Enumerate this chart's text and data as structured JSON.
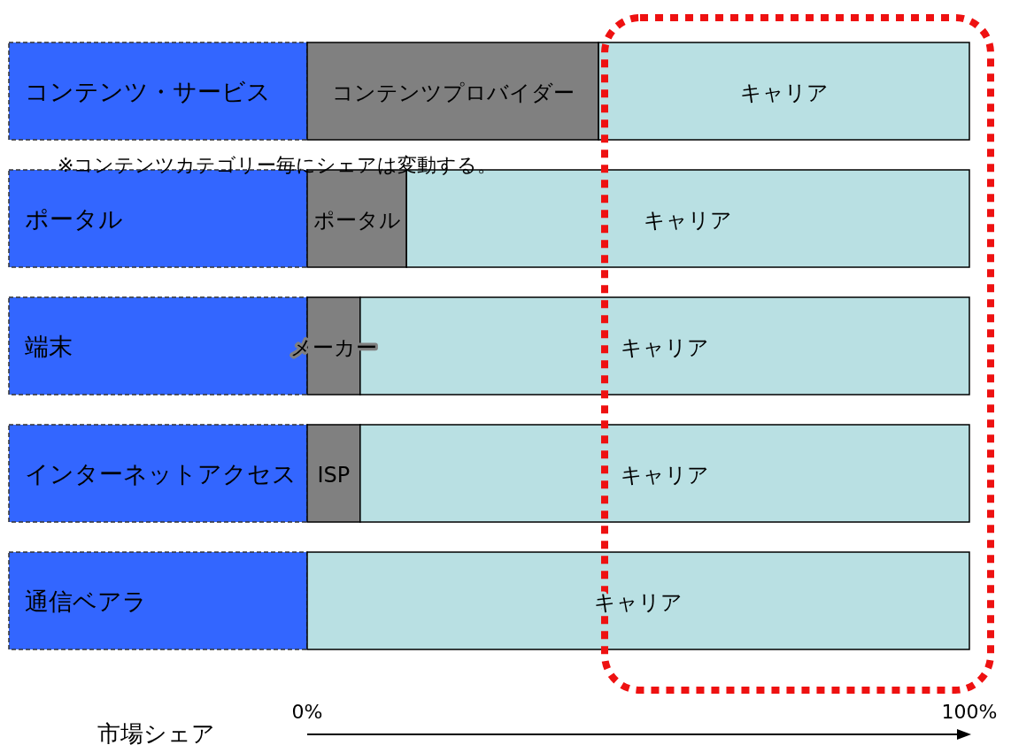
{
  "chart_data": {
    "type": "bar",
    "orientation": "horizontal",
    "stacked": true,
    "categories": [
      "コンテンツ・サービス",
      "ポータル",
      "端末",
      "インターネットアクセス",
      "通信ベアラ"
    ],
    "series": [
      {
        "color": "#808080",
        "values": [
          44,
          15,
          8,
          8,
          0
        ],
        "value_labels": [
          "コンテンツプロバイダー",
          "ポータル",
          "メーカー",
          "ISP",
          null
        ]
      },
      {
        "color": "#b9e0e3",
        "values": [
          56,
          85,
          92,
          92,
          100
        ],
        "value_labels": [
          "キャリア",
          "キャリア",
          "キャリア",
          "キャリア",
          "キャリア"
        ]
      }
    ],
    "xlim": [
      0,
      100
    ],
    "xticks": [
      {
        "value": 0,
        "label": "0%"
      },
      {
        "value": 100,
        "label": "100%"
      }
    ],
    "xlabel": "市場シェア",
    "annotations": [
      "※コンテンツカテゴリー毎にシェアは変動する。"
    ]
  }
}
